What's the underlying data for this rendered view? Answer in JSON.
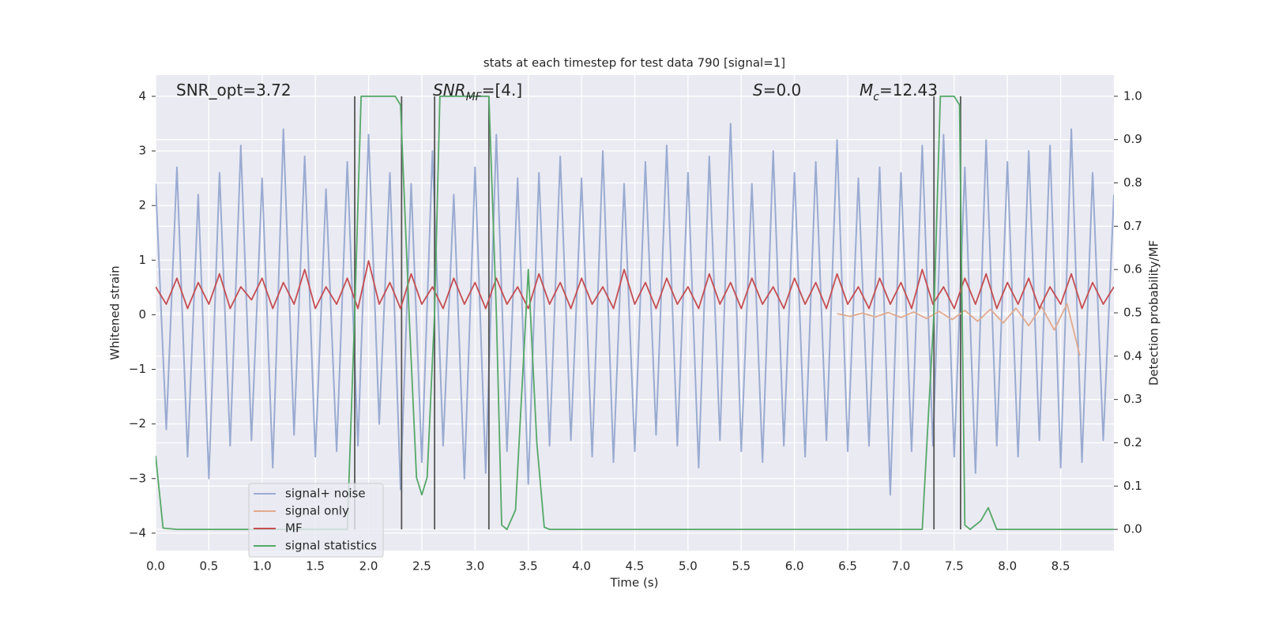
{
  "chart_data": {
    "type": "line",
    "title": "stats at each timestep for test data 790 [signal=1]",
    "xlabel": "Time (s)",
    "ylabel": "Whitened strain",
    "y2label": "Detection probability/MF",
    "xlim": [
      0,
      9.0
    ],
    "ylim": [
      -4.32,
      4.39
    ],
    "y2lim": [
      -0.049,
      1.049
    ],
    "xticks": [
      {
        "value": 0,
        "label": "0.0"
      },
      0.5,
      {
        "value": 1,
        "label": "1.0"
      },
      1.5,
      {
        "value": 2,
        "label": "2.0"
      },
      2.5,
      {
        "value": 3,
        "label": "3.0"
      },
      3.5,
      {
        "value": 4,
        "label": "4.0"
      },
      4.5,
      {
        "value": 5,
        "label": "5.0"
      },
      5.5,
      {
        "value": 6,
        "label": "6.0"
      },
      6.5,
      {
        "value": 7,
        "label": "7.0"
      },
      7.5,
      {
        "value": 8,
        "label": "8.0"
      },
      8.5
    ],
    "yticks": [
      {
        "value": -4,
        "label": "−4"
      },
      {
        "value": -3,
        "label": "−3"
      },
      {
        "value": -2,
        "label": "−2"
      },
      {
        "value": -1,
        "label": "−1"
      },
      0,
      1,
      2,
      3,
      4
    ],
    "y2ticks": [
      {
        "value": 0,
        "label": "0.0"
      },
      0.1,
      0.2,
      0.3,
      0.4,
      0.5,
      0.6,
      0.7,
      0.8,
      0.9,
      {
        "value": 1,
        "label": "1.0"
      }
    ],
    "grid": true,
    "background": "#eaeaf2",
    "legend": "lower left",
    "vlines": [
      1.87,
      2.31,
      2.62,
      3.13,
      7.31,
      7.56
    ],
    "vline_range": [
      0,
      1
    ],
    "vline_color": "#555555",
    "annotations": [
      {
        "parts": [
          {
            "text": "SNR_opt=3.72"
          }
        ]
      },
      {
        "parts": [
          {
            "text": "SNR",
            "style": "math"
          },
          {
            "text": "MF",
            "style": "math-sub"
          },
          {
            "text": "=[4.]"
          }
        ]
      },
      {
        "parts": [
          {
            "text": "S",
            "style": "math"
          },
          {
            "text": "=0.0"
          }
        ]
      },
      {
        "parts": [
          {
            "text": "M",
            "style": "math"
          },
          {
            "text": "c",
            "style": "math-sub"
          },
          {
            "text": "=12.43"
          }
        ]
      }
    ],
    "series": [
      {
        "name": "signal+ noise",
        "color": "#9aabd1",
        "axis": "y",
        "x": [
          0,
          0.1,
          0.2,
          0.3,
          0.4,
          0.5,
          0.6,
          0.7,
          0.8,
          0.9,
          1,
          1.1,
          1.2,
          1.3,
          1.4,
          1.5,
          1.6,
          1.7,
          1.8,
          1.9,
          2,
          2.1,
          2.2,
          2.3,
          2.4,
          2.5,
          2.6,
          2.7,
          2.8,
          2.9,
          3,
          3.1,
          3.2,
          3.3,
          3.4,
          3.5,
          3.6,
          3.7,
          3.8,
          3.9,
          4,
          4.1,
          4.2,
          4.3,
          4.4,
          4.5,
          4.6,
          4.7,
          4.8,
          4.9,
          5,
          5.1,
          5.2,
          5.3,
          5.4,
          5.5,
          5.6,
          5.7,
          5.8,
          5.9,
          6,
          6.1,
          6.2,
          6.3,
          6.4,
          6.5,
          6.6,
          6.7,
          6.8,
          6.9,
          7,
          7.1,
          7.2,
          7.3,
          7.4,
          7.5,
          7.6,
          7.7,
          7.8,
          7.9,
          8,
          8.1,
          8.2,
          8.3,
          8.4,
          8.5,
          8.6,
          8.7,
          8.8,
          8.9,
          9
        ],
        "values": [
          2.4,
          -2.1,
          2.7,
          -2.6,
          2.2,
          -3.0,
          2.6,
          -2.4,
          3.1,
          -2.3,
          2.5,
          -2.8,
          3.4,
          -2.2,
          2.9,
          -2.6,
          2.3,
          -2.5,
          2.8,
          -2.4,
          3.3,
          -2.0,
          2.6,
          -3.2,
          2.4,
          -2.7,
          3.0,
          -2.4,
          2.2,
          -3.0,
          2.7,
          -2.9,
          3.3,
          -2.5,
          2.5,
          -3.1,
          2.6,
          -2.4,
          2.9,
          -2.3,
          2.5,
          -2.6,
          3.0,
          -2.7,
          2.4,
          -2.5,
          2.8,
          -2.2,
          3.1,
          -2.4,
          2.6,
          -2.8,
          2.9,
          -2.3,
          3.5,
          -2.5,
          2.4,
          -2.7,
          3.0,
          -2.4,
          2.6,
          -2.6,
          2.8,
          -2.3,
          3.2,
          -2.5,
          2.5,
          -2.4,
          2.7,
          -3.3,
          2.6,
          -2.5,
          3.1,
          -2.4,
          3.3,
          -2.6,
          2.7,
          -2.9,
          3.2,
          -2.4,
          2.8,
          -2.6,
          3.0,
          -2.3,
          3.1,
          -2.8,
          3.4,
          -2.7,
          2.6,
          -2.3,
          2.2
        ]
      },
      {
        "name": "signal only",
        "color": "#e0aa8f",
        "axis": "y",
        "x": [
          6.4,
          6.52,
          6.64,
          6.76,
          6.88,
          7,
          7.12,
          7.24,
          7.36,
          7.48,
          7.6,
          7.72,
          7.84,
          7.96,
          8.08,
          8.2,
          8.32,
          8.44,
          8.56,
          8.68
        ],
        "values": [
          0.02,
          -0.03,
          0.03,
          -0.04,
          0.04,
          -0.05,
          0.05,
          -0.07,
          0.06,
          -0.09,
          0.08,
          -0.12,
          0.1,
          -0.15,
          0.12,
          -0.2,
          0.15,
          -0.28,
          0.2,
          -0.75
        ]
      },
      {
        "name": "MF",
        "color": "#c44e52",
        "axis": "y2",
        "x": [
          0,
          0.1,
          0.2,
          0.3,
          0.4,
          0.5,
          0.6,
          0.7,
          0.8,
          0.9,
          1,
          1.1,
          1.2,
          1.3,
          1.4,
          1.5,
          1.6,
          1.7,
          1.8,
          1.9,
          2,
          2.1,
          2.2,
          2.3,
          2.4,
          2.5,
          2.6,
          2.7,
          2.8,
          2.9,
          3,
          3.1,
          3.2,
          3.3,
          3.4,
          3.5,
          3.6,
          3.7,
          3.8,
          3.9,
          4,
          4.1,
          4.2,
          4.3,
          4.4,
          4.5,
          4.6,
          4.7,
          4.8,
          4.9,
          5,
          5.1,
          5.2,
          5.3,
          5.4,
          5.5,
          5.6,
          5.7,
          5.8,
          5.9,
          6,
          6.1,
          6.2,
          6.3,
          6.4,
          6.5,
          6.6,
          6.7,
          6.8,
          6.9,
          7,
          7.1,
          7.2,
          7.3,
          7.4,
          7.5,
          7.6,
          7.7,
          7.8,
          7.9,
          8,
          8.1,
          8.2,
          8.3,
          8.4,
          8.5,
          8.6,
          8.7,
          8.8,
          8.9,
          9
        ],
        "values": [
          0.56,
          0.52,
          0.58,
          0.51,
          0.57,
          0.52,
          0.59,
          0.51,
          0.56,
          0.53,
          0.58,
          0.51,
          0.57,
          0.52,
          0.6,
          0.51,
          0.56,
          0.52,
          0.58,
          0.51,
          0.62,
          0.52,
          0.57,
          0.51,
          0.59,
          0.52,
          0.56,
          0.51,
          0.58,
          0.52,
          0.57,
          0.51,
          0.58,
          0.52,
          0.56,
          0.51,
          0.59,
          0.52,
          0.57,
          0.51,
          0.58,
          0.52,
          0.56,
          0.51,
          0.6,
          0.52,
          0.57,
          0.51,
          0.58,
          0.52,
          0.56,
          0.51,
          0.59,
          0.52,
          0.57,
          0.51,
          0.58,
          0.52,
          0.56,
          0.51,
          0.58,
          0.52,
          0.57,
          0.51,
          0.59,
          0.52,
          0.56,
          0.51,
          0.58,
          0.52,
          0.57,
          0.51,
          0.6,
          0.52,
          0.56,
          0.51,
          0.58,
          0.52,
          0.59,
          0.51,
          0.57,
          0.52,
          0.58,
          0.51,
          0.56,
          0.52,
          0.59,
          0.51,
          0.57,
          0.52,
          0.56
        ]
      },
      {
        "name": "signal statistics",
        "color": "#55a868",
        "axis": "y2",
        "x": [
          0,
          0.07,
          0.2,
          1.8,
          1.87,
          1.93,
          2.25,
          2.3,
          2.38,
          2.45,
          2.5,
          2.55,
          2.62,
          2.67,
          3.13,
          3.2,
          3.25,
          3.3,
          3.38,
          3.5,
          3.58,
          3.65,
          3.7,
          7.2,
          7.31,
          7.37,
          7.5,
          7.55,
          7.6,
          7.65,
          7.75,
          7.82,
          7.9,
          9
        ],
        "values": [
          0.17,
          0.003,
          0,
          0,
          0.5,
          1,
          1,
          0.98,
          0.5,
          0.12,
          0.08,
          0.12,
          0.5,
          1,
          1,
          0.5,
          0.01,
          0,
          0.045,
          0.6,
          0.2,
          0.005,
          0,
          0,
          0.5,
          1,
          1,
          0.98,
          0.01,
          0,
          0.02,
          0.05,
          0,
          0
        ]
      }
    ]
  }
}
